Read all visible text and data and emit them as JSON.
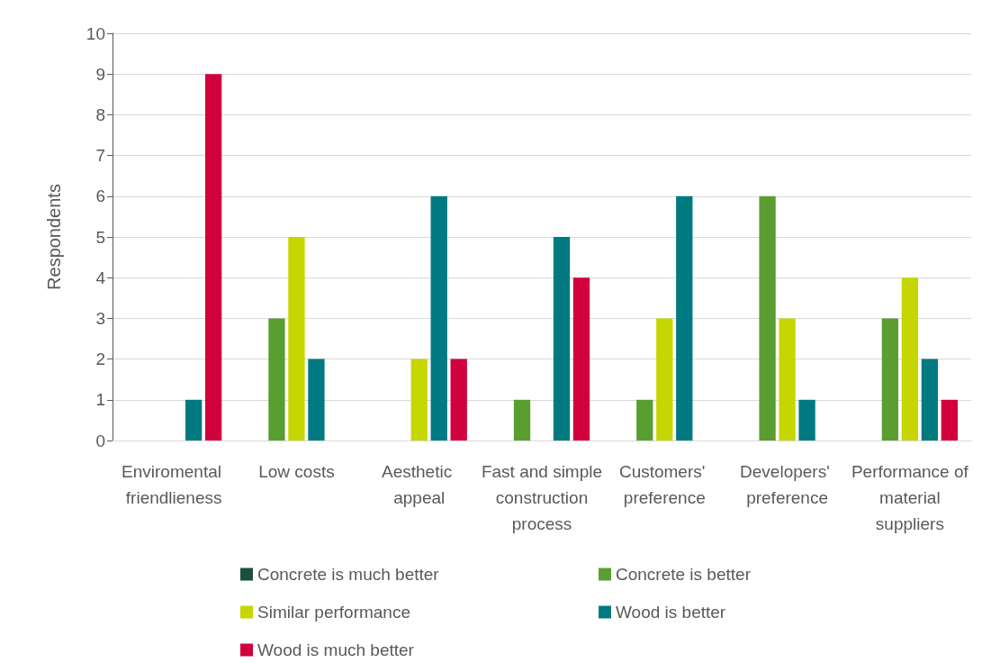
{
  "chart_data": {
    "type": "bar",
    "ylabel": "Respondents",
    "categories": [
      "Enviromental friendlieness",
      "Low costs",
      "Aesthetic appeal",
      "Fast and simple construction process",
      "Customers' preference",
      "Developers' preference",
      "Performance of material suppliers"
    ],
    "series": [
      {
        "name": "Concrete is much better",
        "color": "#1d4e3c",
        "values": [
          0,
          0,
          0,
          0,
          0,
          0,
          0
        ]
      },
      {
        "name": "Concrete is better",
        "color": "#5a9e32",
        "values": [
          0,
          3,
          0,
          1,
          1,
          6,
          3
        ]
      },
      {
        "name": "Similar performance",
        "color": "#c6d600",
        "values": [
          0,
          5,
          2,
          0,
          3,
          3,
          4
        ]
      },
      {
        "name": "Wood is better",
        "color": "#007a80",
        "values": [
          1,
          2,
          6,
          5,
          6,
          1,
          2
        ]
      },
      {
        "name": "Wood is much better",
        "color": "#d2003c",
        "values": [
          9,
          0,
          2,
          4,
          0,
          0,
          1
        ]
      }
    ],
    "ylim": [
      0,
      10
    ],
    "yticks": [
      0,
      1,
      2,
      3,
      4,
      5,
      6,
      7,
      8,
      9,
      10
    ],
    "grid": "y",
    "legend": "bottom"
  }
}
